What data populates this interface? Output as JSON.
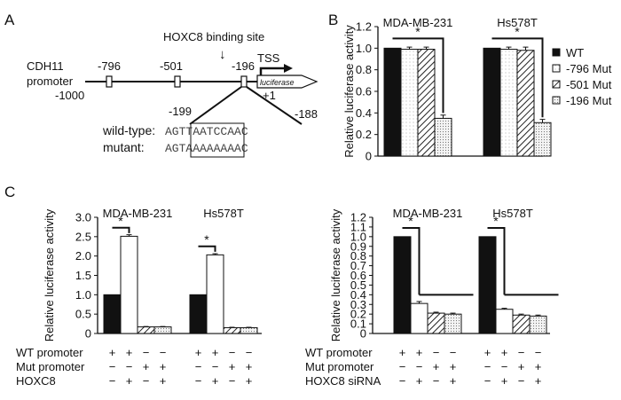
{
  "panel_letters": {
    "a": "A",
    "b": "B",
    "c": "C"
  },
  "panel_a": {
    "binding_site_label": "HOXC8 binding site",
    "arrow_glyph": "↓",
    "tss_label": "TSS",
    "gene_label": "CDH11",
    "promoter_label": "promoter",
    "start_label": "-1000",
    "positions": [
      "-796",
      "-501",
      "-196"
    ],
    "plus_one_label": "+1",
    "reporter_label": "luciferase",
    "zoom_left": "-199",
    "zoom_right": "-188",
    "wildtype_label": "wild-type:",
    "wildtype_seq": "AGTTAATCCAAC",
    "mutant_label": "mutant:",
    "mutant_seq": "AGTAAAAAAAAC"
  },
  "panel_b_legend": {
    "items": [
      {
        "label": "WT",
        "pattern": "solid"
      },
      {
        "label": "-796 Mut",
        "pattern": "dots"
      },
      {
        "label": "-501 Mut",
        "pattern": "hatch"
      },
      {
        "label": "-196 Mut",
        "pattern": "dense-dots"
      }
    ]
  },
  "panel_c_left_rows": {
    "row_labels": [
      "WT promoter",
      "Mut promoter",
      "HOXC8"
    ],
    "groups": [
      [
        [
          "+",
          "+",
          "−",
          "−"
        ],
        [
          "−",
          "−",
          "+",
          "+"
        ],
        [
          "−",
          "+",
          "−",
          "+"
        ]
      ],
      [
        [
          "+",
          "+",
          "−",
          "−"
        ],
        [
          "−",
          "−",
          "+",
          "+"
        ],
        [
          "−",
          "+",
          "−",
          "+"
        ]
      ]
    ]
  },
  "panel_c_right_rows": {
    "row_labels": [
      "WT promoter",
      "Mut promoter",
      "HOXC8 siRNA"
    ],
    "groups": [
      [
        [
          "+",
          "+",
          "−",
          "−"
        ],
        [
          "−",
          "−",
          "+",
          "+"
        ],
        [
          "−",
          "+",
          "−",
          "+"
        ]
      ],
      [
        [
          "+",
          "+",
          "−",
          "−"
        ],
        [
          "−",
          "−",
          "+",
          "+"
        ],
        [
          "−",
          "+",
          "−",
          "+"
        ]
      ]
    ]
  },
  "chart_data": [
    {
      "type": "bar",
      "panel": "B",
      "ylabel": "Relative luciferase activity",
      "ylim": [
        0,
        1.2
      ],
      "yticks": [
        "0",
        "0.2",
        "0.4",
        "0.6",
        "0.8",
        "1.0",
        "1.2"
      ],
      "categories": [
        "MDA-MB-231",
        "Hs578T"
      ],
      "series": [
        {
          "name": "WT",
          "values": [
            1.0,
            1.0
          ],
          "errors": [
            0.0,
            0.0
          ]
        },
        {
          "name": "-796 Mut",
          "values": [
            0.99,
            0.99
          ],
          "errors": [
            0.02,
            0.02
          ]
        },
        {
          "name": "-501 Mut",
          "values": [
            0.99,
            0.98
          ],
          "errors": [
            0.02,
            0.03
          ]
        },
        {
          "name": "-196 Mut",
          "values": [
            0.35,
            0.31
          ],
          "errors": [
            0.03,
            0.03
          ]
        }
      ],
      "significance": [
        "*",
        "*"
      ]
    },
    {
      "type": "bar",
      "panel": "C-left",
      "ylabel": "Relative luciferase activity",
      "ylim": [
        0,
        3.0
      ],
      "yticks": [
        "0",
        "0.5",
        "1.0",
        "1.5",
        "2.0",
        "2.5",
        "3.0"
      ],
      "categories": [
        "MDA-MB-231",
        "Hs578T"
      ],
      "series": [
        {
          "values": [
            1.0,
            1.0
          ],
          "errors": [
            0.0,
            0.0
          ]
        },
        {
          "values": [
            2.51,
            2.03
          ],
          "errors": [
            0.04,
            0.03
          ]
        },
        {
          "values": [
            0.17,
            0.15
          ],
          "errors": [
            0.01,
            0.01
          ]
        },
        {
          "values": [
            0.17,
            0.15
          ],
          "errors": [
            0.01,
            0.01
          ]
        }
      ],
      "significance": [
        "*",
        "*"
      ]
    },
    {
      "type": "bar",
      "panel": "C-right",
      "ylabel": "Relative luciferase activity",
      "ylim": [
        0,
        1.2
      ],
      "yticks": [
        "0",
        "0.1",
        "0.2",
        "0.3",
        "0.4",
        "0.5",
        "0.6",
        "0.7",
        "0.8",
        "0.9",
        "1.0",
        "1.1",
        "1.2"
      ],
      "categories": [
        "MDA-MB-231",
        "Hs578T"
      ],
      "series": [
        {
          "values": [
            1.0,
            1.0
          ],
          "errors": [
            0.0,
            0.0
          ]
        },
        {
          "values": [
            0.31,
            0.25
          ],
          "errors": [
            0.02,
            0.01
          ]
        },
        {
          "values": [
            0.21,
            0.19
          ],
          "errors": [
            0.01,
            0.01
          ]
        },
        {
          "values": [
            0.2,
            0.18
          ],
          "errors": [
            0.01,
            0.01
          ]
        }
      ],
      "significance": [
        "*",
        "*"
      ]
    }
  ]
}
